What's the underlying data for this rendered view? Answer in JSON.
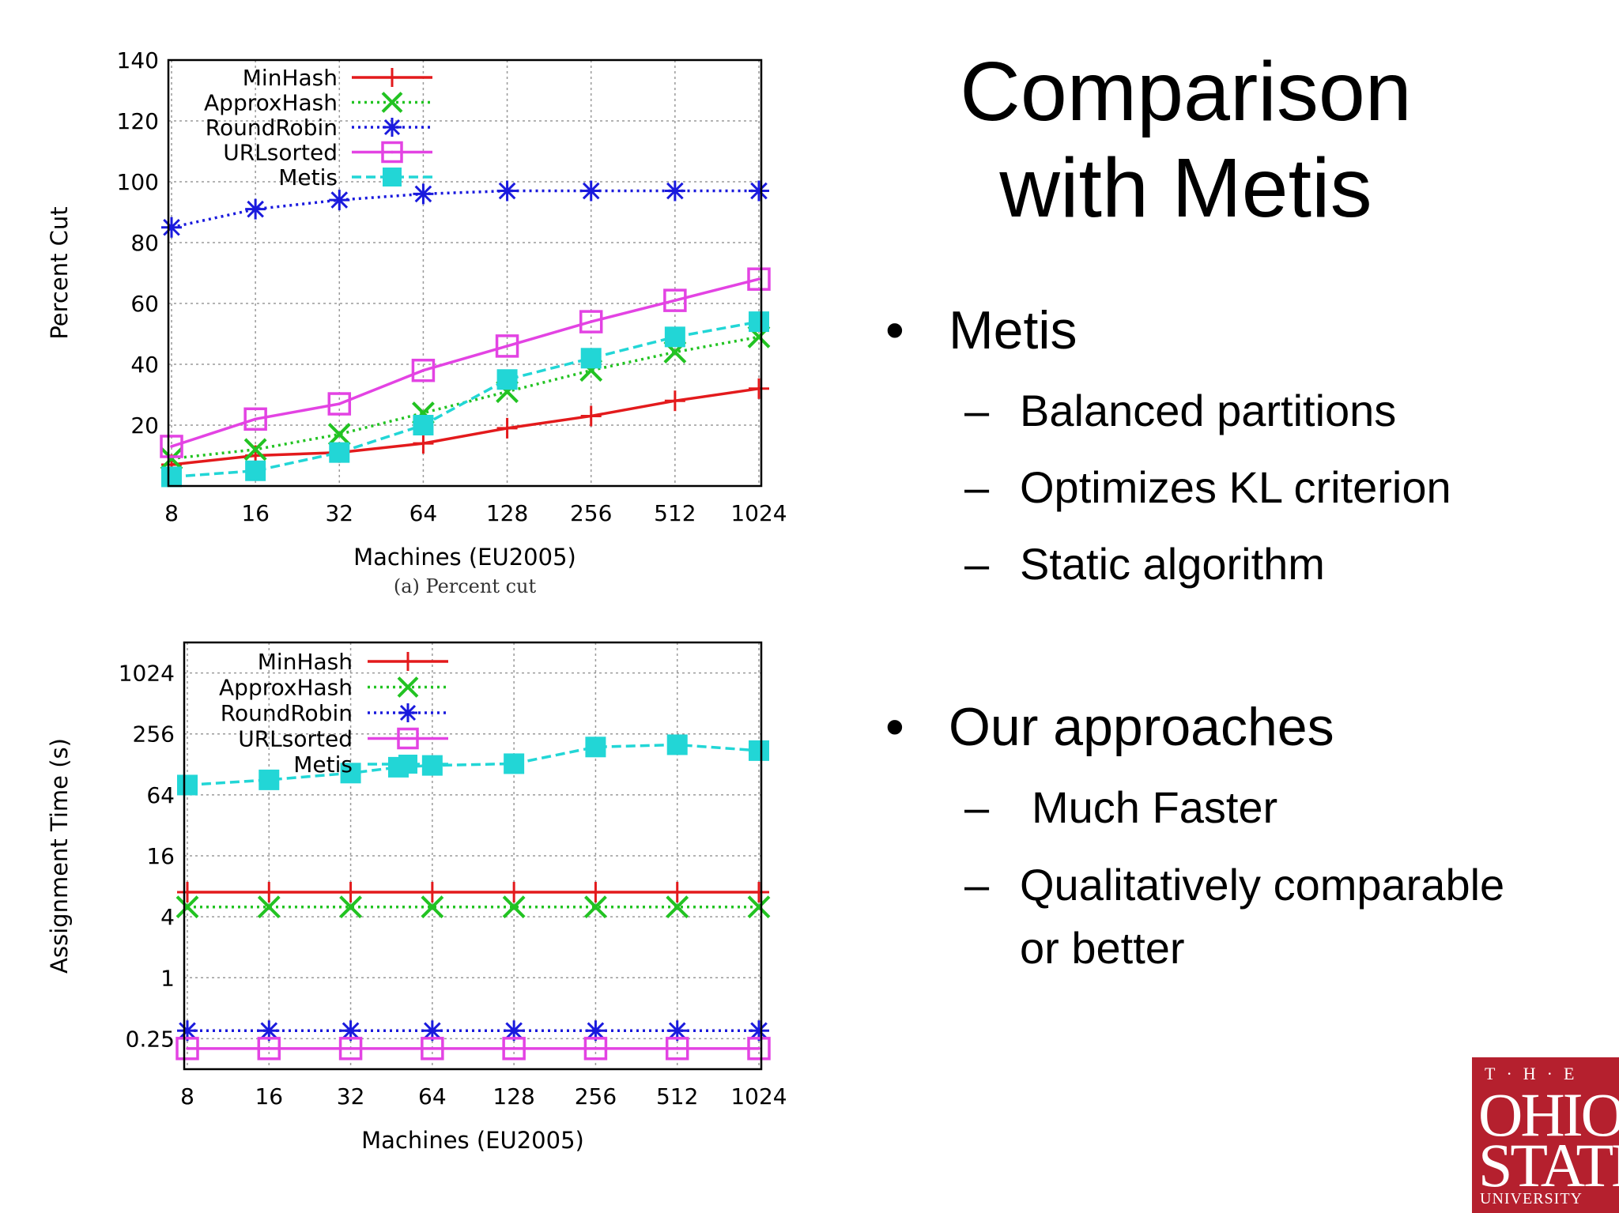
{
  "slide": {
    "title_line1": "Comparison",
    "title_line2": "with Metis",
    "bullet1": "Metis",
    "bullet1_subs": [
      "Balanced partitions",
      "Optimizes KL criterion",
      "Static algorithm"
    ],
    "bullet2": "Our approaches",
    "bullet2_subs": [
      "Much Faster",
      "Qualitatively comparable",
      "or better"
    ],
    "bullet_symbol": "•",
    "dash_symbol": "–",
    "logo": {
      "the": "T·H·E",
      "ohio": "OHIO",
      "state": "STATE",
      "univ": "UNIVERSITY",
      "color": "#b5202e"
    }
  },
  "chart_data": [
    {
      "type": "line",
      "title": "",
      "caption": "(a) Percent cut",
      "xlabel": "Machines (EU2005)",
      "ylabel": "Percent Cut",
      "categories": [
        "8",
        "16",
        "32",
        "64",
        "128",
        "256",
        "512",
        "1024"
      ],
      "ylim": [
        0,
        140
      ],
      "yticks": [
        20,
        40,
        60,
        80,
        100,
        120,
        140
      ],
      "grid": true,
      "legend_position": "top-left",
      "series": [
        {
          "name": "MinHash",
          "marker": "plus",
          "dash": "solid",
          "color": "#e31a1c",
          "values": [
            7,
            10,
            11,
            14,
            19,
            23,
            28,
            32
          ]
        },
        {
          "name": "ApproxHash",
          "marker": "x",
          "dash": "dotted",
          "color": "#22c322",
          "values": [
            9,
            12,
            17,
            24,
            31,
            38,
            44,
            49
          ]
        },
        {
          "name": "RoundRobin",
          "marker": "star",
          "dash": "dotted",
          "color": "#1a1add",
          "values": [
            85,
            91,
            94,
            96,
            97,
            97,
            97,
            97
          ]
        },
        {
          "name": "URLsorted",
          "marker": "square-open",
          "dash": "solid",
          "color": "#e343e3",
          "values": [
            13,
            22,
            27,
            38,
            46,
            54,
            61,
            68
          ]
        },
        {
          "name": "Metis",
          "marker": "square-filled",
          "dash": "dashed",
          "color": "#22d6d6",
          "values": [
            3,
            5,
            11,
            20,
            35,
            42,
            49,
            54
          ]
        }
      ]
    },
    {
      "type": "line",
      "title": "",
      "xlabel": "Machines (EU2005)",
      "ylabel": "Assignment Time (s)",
      "categories": [
        "8",
        "16",
        "32",
        "64",
        "128",
        "256",
        "512",
        "1024"
      ],
      "yscale": "log2",
      "ylim": [
        0.125,
        2048
      ],
      "yticks": [
        "0.25",
        "1",
        "4",
        "16",
        "64",
        "256",
        "1024"
      ],
      "grid": true,
      "legend_position": "top-left",
      "series": [
        {
          "name": "MinHash",
          "marker": "plus",
          "dash": "solid",
          "color": "#e31a1c",
          "values": [
            7,
            7,
            7,
            7,
            7,
            7,
            7,
            7
          ]
        },
        {
          "name": "ApproxHash",
          "marker": "x",
          "dash": "dotted",
          "color": "#22c322",
          "values": [
            5,
            5,
            5,
            5,
            5,
            5,
            5,
            5
          ]
        },
        {
          "name": "RoundRobin",
          "marker": "star",
          "dash": "dotted",
          "color": "#1a1add",
          "values": [
            0.3,
            0.3,
            0.3,
            0.3,
            0.3,
            0.3,
            0.3,
            0.3
          ]
        },
        {
          "name": "URLsorted",
          "marker": "square-open",
          "dash": "solid",
          "color": "#e343e3",
          "values": [
            0.2,
            0.2,
            0.2,
            0.2,
            0.2,
            0.2,
            0.2,
            0.2
          ]
        },
        {
          "name": "Metis",
          "x": [
            "8",
            "16",
            "32",
            "48",
            "64",
            "128",
            "256",
            "512",
            "1024"
          ],
          "marker": "square-filled",
          "dash": "dashed",
          "color": "#22d6d6",
          "values": [
            80,
            90,
            105,
            120,
            125,
            130,
            190,
            200,
            175
          ]
        }
      ]
    }
  ]
}
